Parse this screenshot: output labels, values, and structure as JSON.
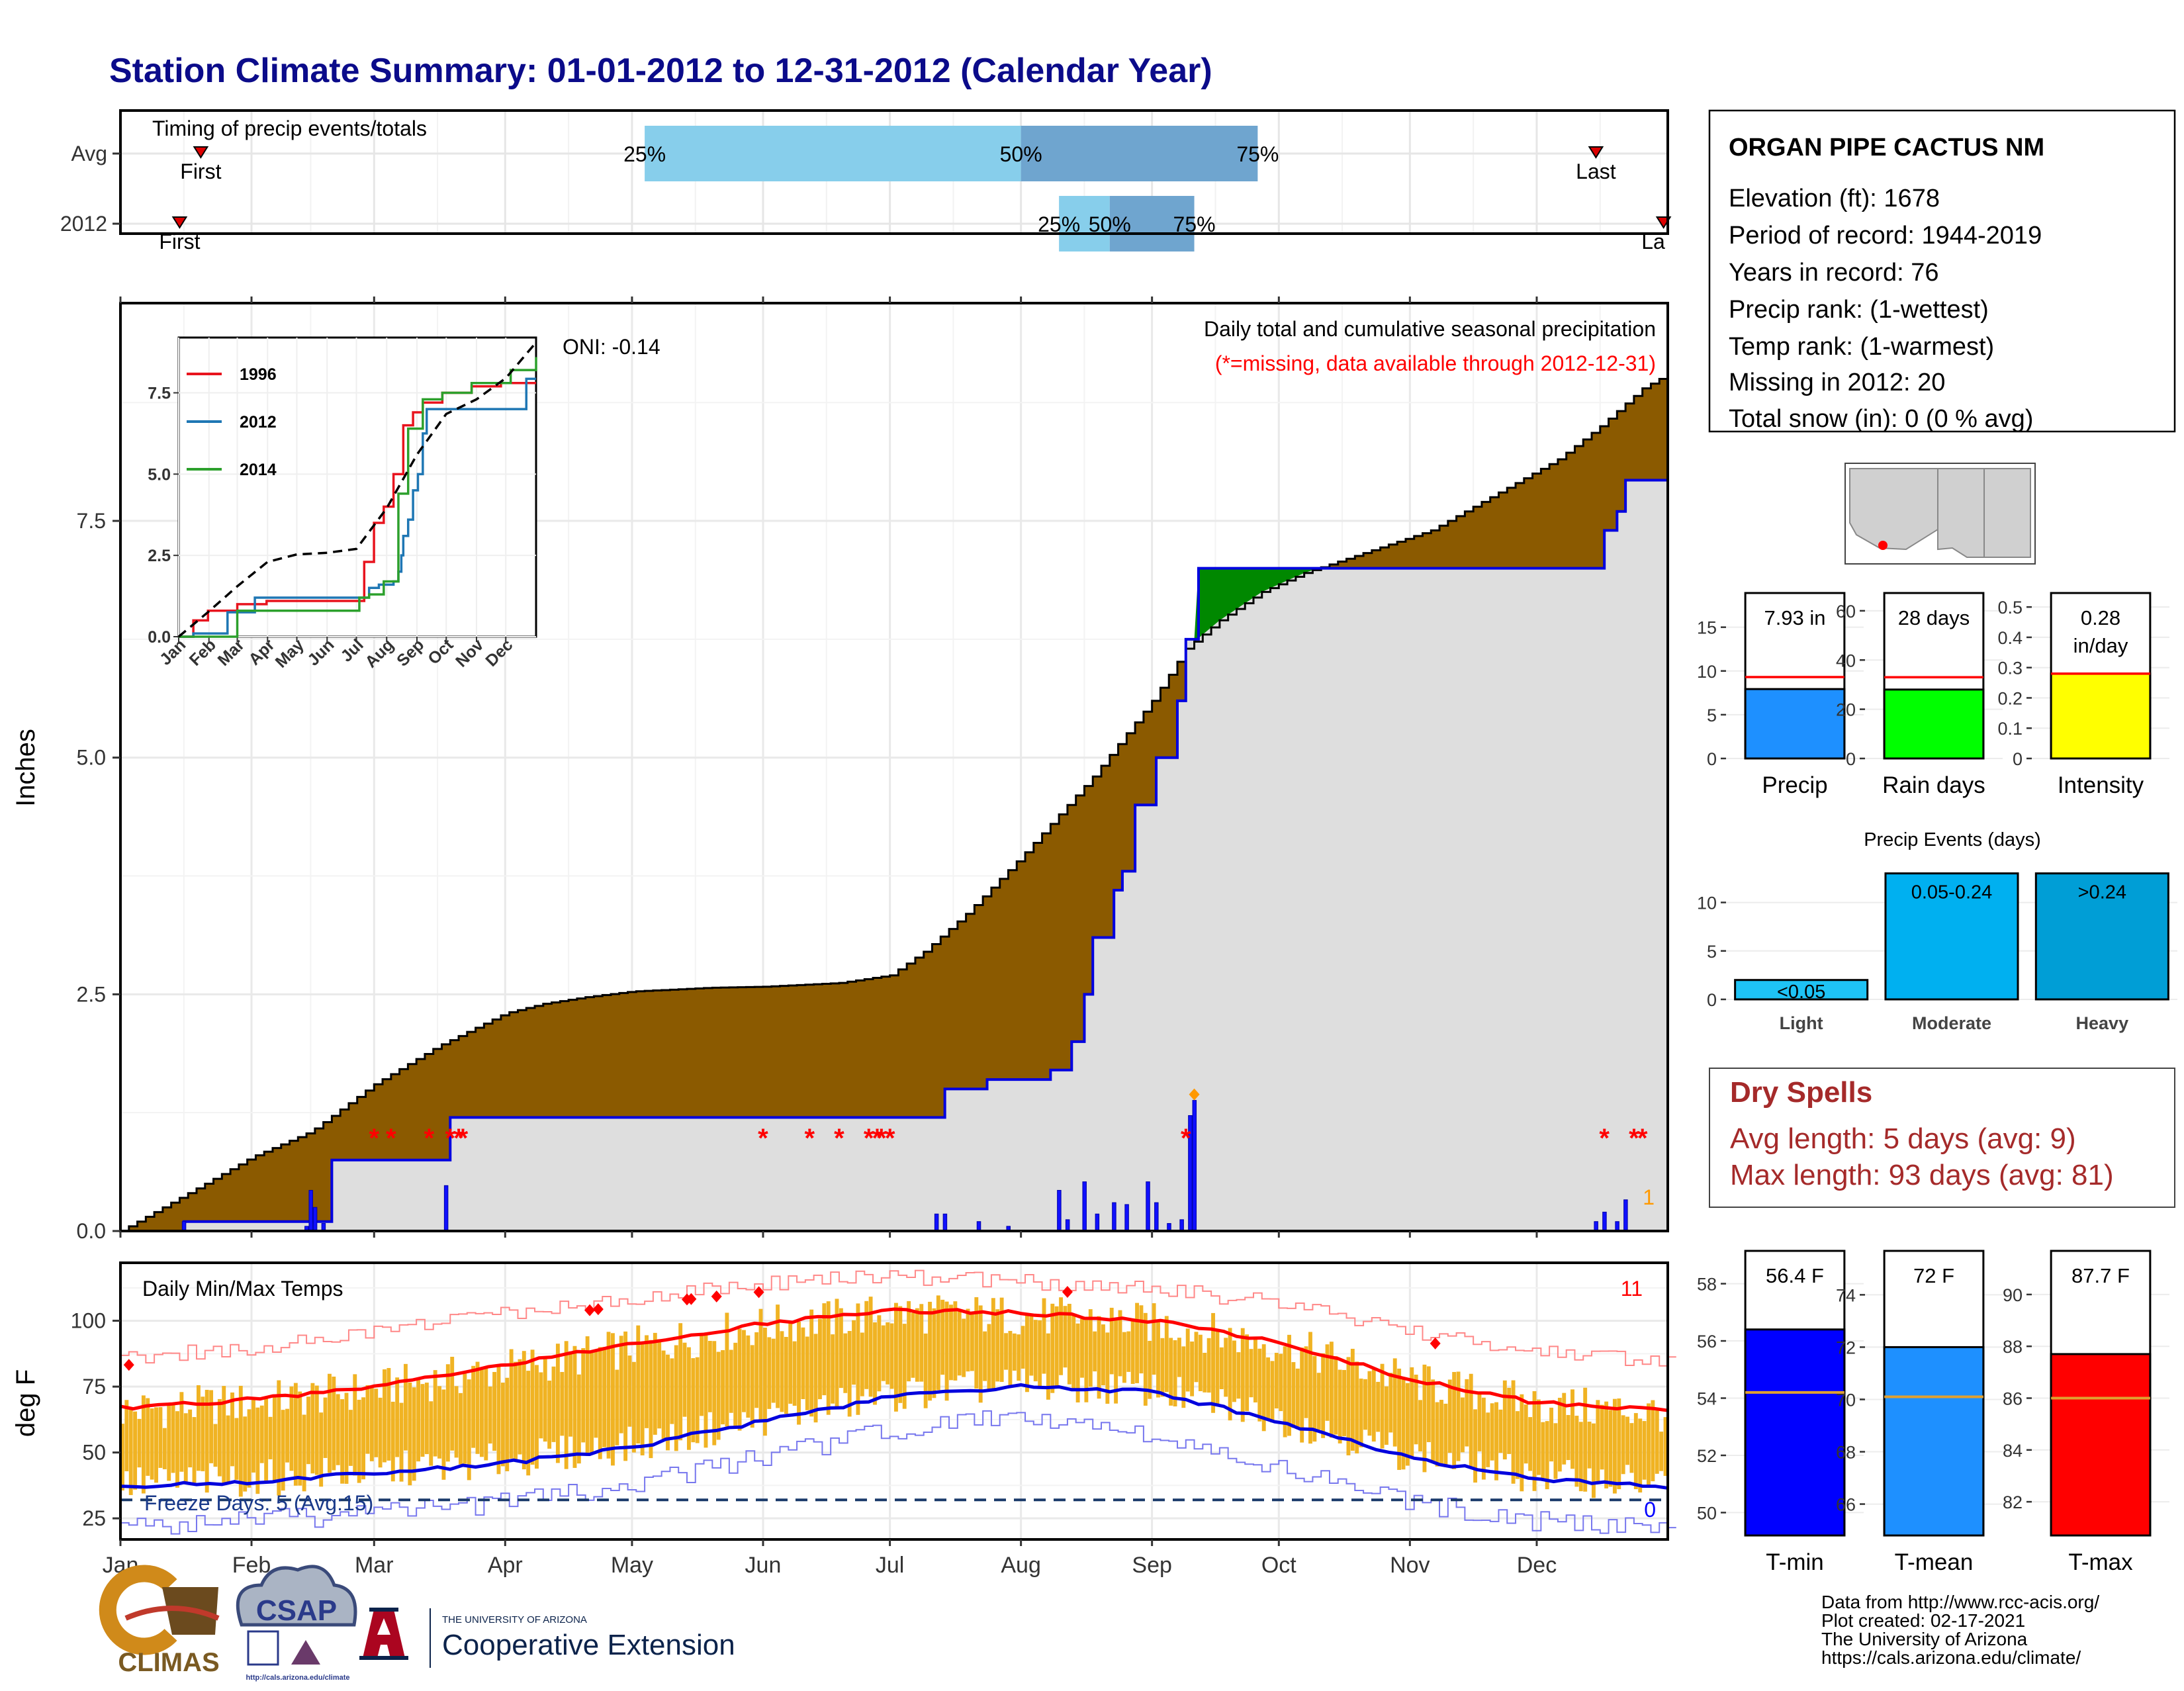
{
  "header": {
    "title": "Station Climate Summary: 01-01-2012 to 12-31-2012 (Calendar Year)"
  },
  "chart_data": [
    {
      "type": "timing",
      "title": "Timing of precip events/totals",
      "rows": [
        {
          "label": "Avg",
          "first": "01-20",
          "last": "12-15",
          "p25": "05-04",
          "p50": "08-01",
          "p75": "09-26"
        },
        {
          "label": "2012",
          "first": "01-15",
          "last": "12-31",
          "p25": "08-10",
          "p50": "08-22",
          "p75": "09-11"
        }
      ],
      "marker_labels": {
        "first": "First",
        "last": "Last",
        "last_truncated": "La"
      },
      "pct_labels": [
        "25%",
        "50%",
        "75%"
      ]
    },
    {
      "type": "area",
      "title": "Daily total and cumulative seasonal precipitation",
      "subtitle": "(*=missing, data available through 2012-12-31)",
      "oni_label": "ONI: -0.14",
      "ylabel": "Inches",
      "ylim": [
        0,
        9.8
      ],
      "yticks": [
        0,
        2.5,
        5,
        7.5
      ],
      "yticklabels": [
        "0.0",
        "2.5",
        "5.0",
        "7.5"
      ],
      "xlim": [
        0,
        366
      ],
      "xticks": [
        0,
        31,
        60,
        91,
        121,
        152,
        182,
        213,
        244,
        274,
        305,
        335
      ],
      "xticklabels": [
        "Jan",
        "Feb",
        "Mar",
        "Apr",
        "May",
        "Jun",
        "Jul",
        "Aug",
        "Sep",
        "Oct",
        "Nov",
        "Dec"
      ],
      "avg_cumulative": {
        "doy": [
          0,
          10,
          20,
          31,
          45,
          60,
          75,
          91,
          100,
          110,
          121,
          140,
          152,
          170,
          182,
          190,
          200,
          213,
          220,
          230,
          244,
          252,
          260,
          270,
          280,
          290,
          300,
          310,
          320,
          330,
          340,
          350,
          360,
          366
        ],
        "values": [
          0,
          0.25,
          0.5,
          0.78,
          1.05,
          1.55,
          1.95,
          2.3,
          2.4,
          2.47,
          2.53,
          2.57,
          2.58,
          2.62,
          2.7,
          2.95,
          3.35,
          3.95,
          4.3,
          4.8,
          5.6,
          6.15,
          6.45,
          6.75,
          6.95,
          7.1,
          7.25,
          7.4,
          7.65,
          7.9,
          8.15,
          8.5,
          8.9,
          9.05
        ]
      },
      "obs_cumulative": {
        "doy": [
          0,
          15,
          45,
          50,
          78,
          182,
          195,
          205,
          220,
          225,
          228,
          230,
          235,
          237,
          240,
          245,
          250,
          252,
          255,
          256,
          260,
          270,
          290,
          300,
          350,
          351,
          354,
          356,
          366
        ],
        "values": [
          0,
          0.1,
          0.1,
          0.75,
          1.2,
          1.2,
          1.5,
          1.6,
          1.7,
          2.0,
          2.5,
          3.1,
          3.6,
          3.8,
          4.5,
          5.0,
          5.6,
          6.25,
          7.0,
          7.0,
          7.0,
          7.0,
          7.0,
          7.0,
          7.0,
          7.4,
          7.6,
          7.93,
          7.93
        ]
      },
      "daily_bars": [
        {
          "doy": 15,
          "value": 0.1
        },
        {
          "doy": 44,
          "value": 0.05
        },
        {
          "doy": 45,
          "value": 0.43
        },
        {
          "doy": 46,
          "value": 0.25
        },
        {
          "doy": 48,
          "value": 0.08
        },
        {
          "doy": 77,
          "value": 0.48
        },
        {
          "doy": 193,
          "value": 0.18
        },
        {
          "doy": 195,
          "value": 0.18
        },
        {
          "doy": 203,
          "value": 0.1
        },
        {
          "doy": 210,
          "value": 0.05
        },
        {
          "doy": 222,
          "value": 0.43
        },
        {
          "doy": 224,
          "value": 0.12
        },
        {
          "doy": 228,
          "value": 0.52
        },
        {
          "doy": 231,
          "value": 0.18
        },
        {
          "doy": 235,
          "value": 0.3
        },
        {
          "doy": 238,
          "value": 0.28
        },
        {
          "doy": 243,
          "value": 0.52
        },
        {
          "doy": 245,
          "value": 0.3
        },
        {
          "doy": 248,
          "value": 0.08
        },
        {
          "doy": 251,
          "value": 0.12
        },
        {
          "doy": 253,
          "value": 1.22
        },
        {
          "doy": 254,
          "value": 1.38
        },
        {
          "doy": 349,
          "value": 0.1
        },
        {
          "doy": 351,
          "value": 0.2
        },
        {
          "doy": 354,
          "value": 0.1
        },
        {
          "doy": 356,
          "value": 0.33
        }
      ],
      "missing_days": [
        60,
        64,
        73,
        78,
        80,
        81,
        152,
        163,
        170,
        177,
        179,
        180,
        182,
        252,
        351,
        358,
        360
      ],
      "missing_marker": "*",
      "record_marker_doy": 254,
      "record_label": "1",
      "inset": {
        "type": "line",
        "ylim": [
          0,
          9.2
        ],
        "yticks": [
          0,
          2.5,
          5,
          7.5
        ],
        "yticklabels": [
          "0.0",
          "2.5",
          "5.0",
          "7.5"
        ],
        "xticklabels": [
          "Jan",
          "Feb",
          "Mar",
          "Apr",
          "May",
          "Jun",
          "Jul",
          "Aug",
          "Sep",
          "Oct",
          "Nov",
          "Dec"
        ],
        "series": [
          {
            "name": "1996",
            "color": "#e8141e",
            "x": [
              0,
              15,
              30,
              60,
              90,
              120,
              150,
              180,
              190,
              200,
              210,
              220,
              230,
              240,
              250,
              270,
              300,
              330,
              366
            ],
            "y": [
              0,
              0.5,
              0.8,
              1.0,
              1.1,
              1.1,
              1.1,
              1.1,
              2.3,
              3.5,
              4.0,
              5.0,
              6.5,
              6.9,
              7.2,
              7.5,
              7.7,
              7.8,
              7.8
            ]
          },
          {
            "name": "2012",
            "color": "#1f77b4",
            "x": [
              0,
              15,
              45,
              50,
              78,
              182,
              195,
              205,
              220,
              225,
              228,
              230,
              235,
              240,
              245,
              250,
              254,
              300,
              350,
              356,
              366
            ],
            "y": [
              0,
              0.1,
              0.1,
              0.75,
              1.2,
              1.2,
              1.5,
              1.6,
              1.7,
              2.0,
              2.5,
              3.1,
              3.6,
              4.5,
              5.0,
              6.25,
              7.0,
              7.0,
              7.0,
              7.93,
              7.93
            ]
          },
          {
            "name": "2014",
            "color": "#2ca02c",
            "x": [
              0,
              40,
              60,
              90,
              120,
              150,
              180,
              185,
              195,
              210,
              225,
              235,
              250,
              270,
              300,
              340,
              366
            ],
            "y": [
              0,
              0,
              0.8,
              0.8,
              0.8,
              0.8,
              0.8,
              1.2,
              1.3,
              1.7,
              4.4,
              6.4,
              7.3,
              7.5,
              7.8,
              8.2,
              8.6
            ]
          },
          {
            "name": "",
            "color": "#000000",
            "dashed": true,
            "x": [
              0,
              31,
              60,
              91,
              121,
              152,
              182,
              213,
              244,
              274,
              305,
              335,
              366
            ],
            "y": [
              0,
              0.78,
              1.55,
              2.3,
              2.53,
              2.58,
              2.7,
              3.95,
              5.6,
              6.85,
              7.3,
              7.95,
              9.05
            ]
          }
        ]
      }
    },
    {
      "type": "line",
      "title": "Daily Min/Max Temps",
      "ylabel": "deg F",
      "ylim": [
        17,
        122
      ],
      "yticks": [
        25,
        50,
        75,
        100
      ],
      "yticklabels": [
        "25",
        "50",
        "75",
        "100"
      ],
      "xlim": [
        0,
        366
      ],
      "xticks": [
        0,
        31,
        60,
        91,
        121,
        152,
        182,
        213,
        244,
        274,
        305,
        335
      ],
      "xticklabels": [
        "Jan",
        "Feb",
        "Mar",
        "Apr",
        "May",
        "Jun",
        "Jul",
        "Aug",
        "Sep",
        "Oct",
        "Nov",
        "Dec"
      ],
      "freeze_line": 32,
      "freeze_label": "Freeze Days: 5 (Avg:15)",
      "count_hot": "11",
      "count_freeze": "0",
      "normal_max": {
        "doy": [
          0,
          31,
          60,
          91,
          121,
          152,
          182,
          213,
          244,
          274,
          305,
          335,
          366
        ],
        "values": [
          67,
          70,
          75,
          83,
          91,
          99,
          104,
          103,
          100,
          92,
          78,
          69,
          66
        ]
      },
      "normal_min": {
        "doy": [
          0,
          31,
          60,
          91,
          121,
          152,
          182,
          213,
          244,
          274,
          305,
          335,
          366
        ],
        "values": [
          37,
          39,
          42,
          46,
          52,
          62,
          71,
          75,
          73,
          62,
          48,
          40,
          37
        ]
      },
      "record_max": {
        "doy": [
          0,
          31,
          60,
          91,
          121,
          152,
          182,
          213,
          244,
          274,
          305,
          335,
          366
        ],
        "values": [
          86,
          90,
          96,
          103,
          109,
          114,
          117,
          115,
          112,
          107,
          96,
          88,
          85
        ]
      },
      "record_min": {
        "doy": [
          0,
          31,
          60,
          91,
          121,
          152,
          182,
          213,
          244,
          274,
          305,
          335,
          366
        ],
        "values": [
          22,
          24,
          27,
          31,
          38,
          48,
          58,
          64,
          57,
          43,
          31,
          24,
          22
        ]
      },
      "record_highs_doy": [
        2,
        111,
        113,
        134,
        135,
        141,
        151,
        224,
        311
      ]
    },
    {
      "type": "bar",
      "group": "precip_summary",
      "panels": [
        {
          "category": "Precip",
          "value": 7.93,
          "avg": 9.3,
          "label": "7.93 in",
          "color": "#1e90ff",
          "ylim": [
            0,
            18
          ],
          "yticks": [
            0,
            5,
            10,
            15
          ]
        },
        {
          "category": "Rain days",
          "value": 28,
          "avg": 33,
          "label": "28 days",
          "color": "#00ff00",
          "ylim": [
            0,
            64
          ],
          "yticks": [
            0,
            20,
            40,
            60
          ]
        },
        {
          "category": "Intensity",
          "value": 0.28,
          "avg": 0.28,
          "label": "0.28 in/day",
          "color": "#ffff00",
          "ylim": [
            0,
            0.52
          ],
          "yticks": [
            0,
            0.1,
            0.2,
            0.3,
            0.4,
            0.5
          ]
        }
      ]
    },
    {
      "type": "bar",
      "title": "Precip Events (days)",
      "categories": [
        "Light",
        "Moderate",
        "Heavy"
      ],
      "values": [
        2,
        13,
        13
      ],
      "bar_labels": [
        "<0.05",
        "0.05-0.24",
        ">0.24"
      ],
      "colors": [
        "#1ec3f5",
        "#00b0f0",
        "#009ed6"
      ],
      "ylim": [
        0,
        14
      ],
      "yticks": [
        0,
        5,
        10
      ]
    },
    {
      "type": "bar",
      "group": "temp_summary",
      "panels": [
        {
          "category": "T-min",
          "value": 56.4,
          "avg": 54.2,
          "label": "56.4 F",
          "color": "#0000ff",
          "ylim": [
            49.2,
            58.8
          ],
          "yticks": [
            50,
            52,
            54,
            56,
            58
          ]
        },
        {
          "category": "T-mean",
          "value": 72,
          "avg": 70.1,
          "label": "72 F",
          "color": "#1e90ff",
          "ylim": [
            64.8,
            75.3
          ],
          "yticks": [
            66,
            68,
            70,
            72,
            74
          ]
        },
        {
          "category": "T-max",
          "value": 87.7,
          "avg": 86,
          "label": "87.7 F",
          "color": "#ff0000",
          "ylim": [
            80.7,
            91.3
          ],
          "yticks": [
            82,
            84,
            86,
            88,
            90
          ]
        }
      ]
    }
  ],
  "station": {
    "name": "ORGAN PIPE CACTUS NM",
    "lines": [
      "Elevation (ft): 1678",
      "Period of record: 1944-2019",
      "Years in record: 76",
      "Precip rank:  (1-wettest)",
      "Temp rank:  (1-warmest)",
      "Missing in 2012: 20",
      "Total snow (in): 0 (0 % avg)"
    ]
  },
  "dry_spells": {
    "title": "Dry Spells",
    "avg": "Avg length: 5 days (avg: 9)",
    "max": "Max length: 93 days (avg: 81)"
  },
  "logos": {
    "climas": "CLIMAS",
    "csap": "CSAP",
    "csap_url": "http://cals.arizona.edu/climate",
    "ua_small": "THE UNIVERSITY OF ARIZONA",
    "ua_big": "Cooperative Extension"
  },
  "credits": [
    "Data from http://www.rcc-acis.org/",
    "Plot created: 02-17-2021",
    "The University of Arizona",
    "https://cals.arizona.edu/climate/"
  ],
  "colors": {
    "title": "#0b0b8a",
    "avg_fill": "#8b5a00",
    "surplus_fill": "#008800",
    "obs_line": "#0000e0",
    "below_fill": "#dedede",
    "temp_bar": "#f0b323",
    "dry_spells": "#a52a2a",
    "missing": "#ff0000"
  }
}
